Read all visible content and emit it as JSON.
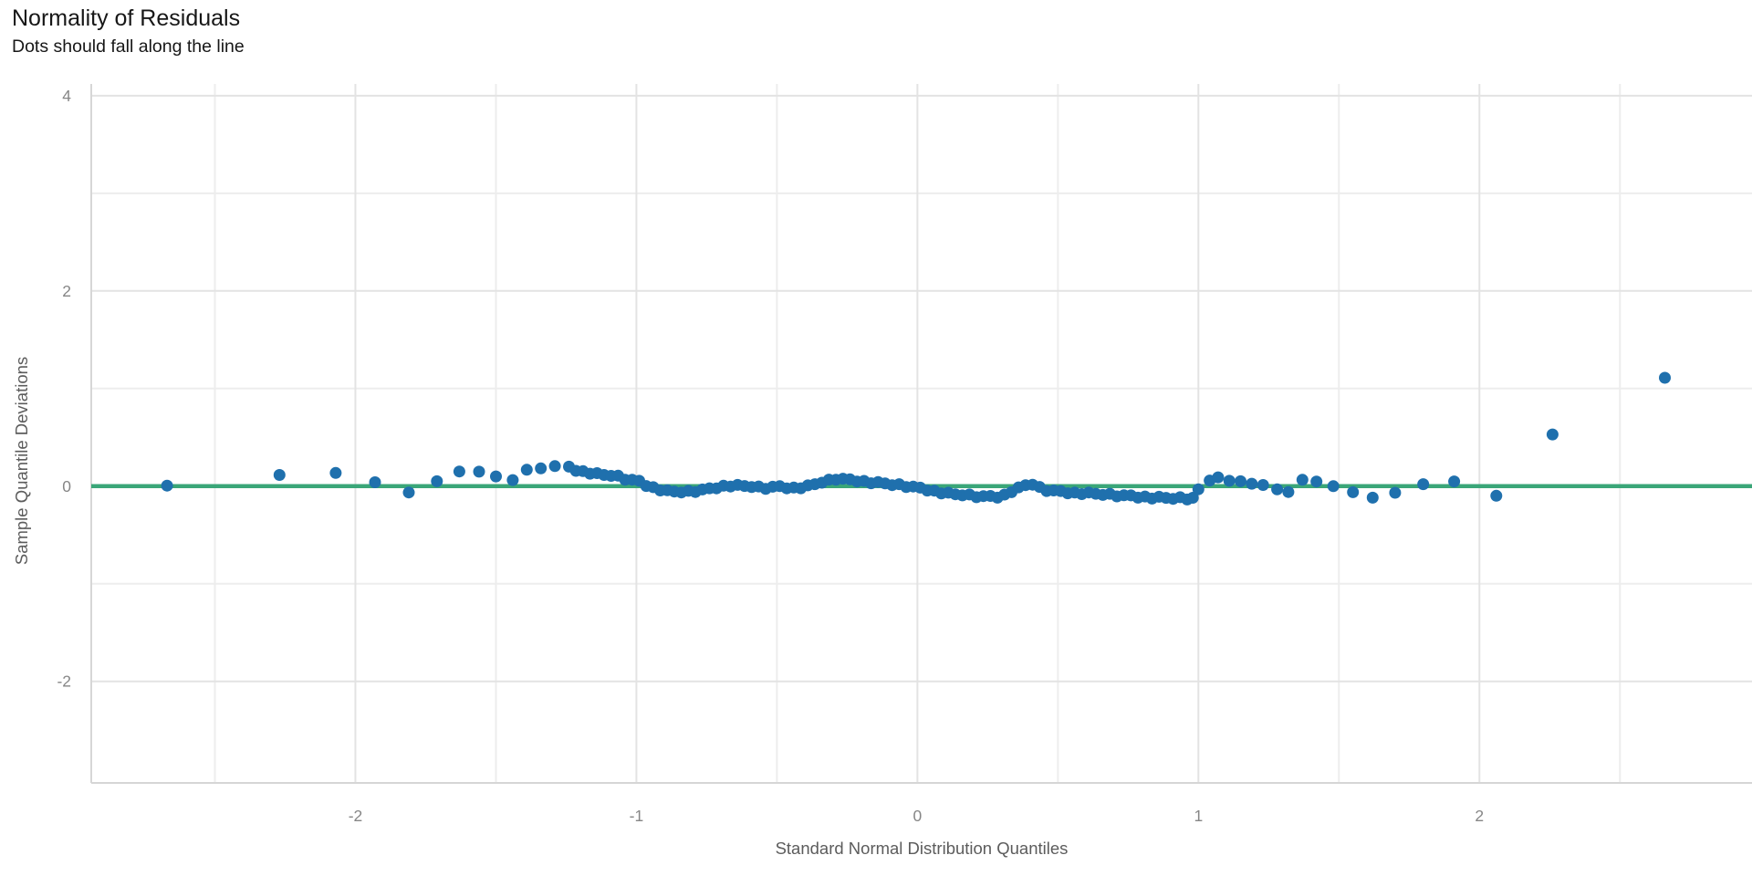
{
  "chart_data": {
    "type": "scatter",
    "title": "Normality of Residuals",
    "subtitle": "Dots should fall along the line",
    "xlabel": "Standard Normal Distribution Quantiles",
    "ylabel": "Sample Quantile Deviations",
    "xlim": [
      -2.94,
      2.97
    ],
    "ylim": [
      -3.04,
      4.12
    ],
    "grid": "on",
    "legend": "none",
    "x_ticks": [
      {
        "v": -2,
        "label": "-2"
      },
      {
        "v": -1,
        "label": "-1"
      },
      {
        "v": 0,
        "label": "0"
      },
      {
        "v": 1,
        "label": "1"
      },
      {
        "v": 2,
        "label": "2"
      }
    ],
    "y_ticks": [
      {
        "v": 4,
        "label": "4"
      },
      {
        "v": 2,
        "label": "2"
      },
      {
        "v": 0,
        "label": "0"
      },
      {
        "v": -2,
        "label": "-2"
      }
    ],
    "x_gridlines_minor": [
      -2.5,
      -1.5,
      -0.5,
      0.5,
      1.5,
      2.5
    ],
    "x_gridlines_major": [
      -2,
      -1,
      0,
      1,
      2
    ],
    "y_gridlines_minor": [
      3,
      1,
      -1
    ],
    "y_gridlines_major": [
      4,
      2,
      0,
      -2
    ],
    "reference_line": {
      "y": 0,
      "meaning": "zero-deviation line"
    },
    "style": {
      "point_color": "#1f70ad",
      "point_radius": 6.5,
      "reference_line_color": "#3aa678",
      "reference_line_width": 4.5,
      "grid_minor_color": "#ededed",
      "grid_major_color": "#e3e3e3",
      "axis_line_color": "#d6d6d6",
      "tick_label_color": "#868686",
      "axis_title_color": "#5c5c5c",
      "title_color": "#171717",
      "background_color": "#ffffff"
    },
    "series": [
      {
        "name": "sample-quantile-deviations",
        "points": [
          [
            -2.67,
            0.005
          ],
          [
            -2.27,
            0.115
          ],
          [
            -2.07,
            0.135
          ],
          [
            -1.93,
            0.04
          ],
          [
            -1.81,
            -0.065
          ],
          [
            -1.71,
            0.05
          ],
          [
            -1.63,
            0.15
          ],
          [
            -1.56,
            0.148
          ],
          [
            -1.5,
            0.1
          ],
          [
            -1.44,
            0.062
          ],
          [
            -1.39,
            0.168
          ],
          [
            -1.34,
            0.182
          ],
          [
            -1.29,
            0.205
          ],
          [
            -1.24,
            0.2
          ],
          [
            -1.215,
            0.157
          ],
          [
            -1.19,
            0.154
          ],
          [
            -1.165,
            0.128
          ],
          [
            -1.14,
            0.133
          ],
          [
            -1.115,
            0.115
          ],
          [
            -1.09,
            0.105
          ],
          [
            -1.065,
            0.107
          ],
          [
            -1.04,
            0.065
          ],
          [
            -1.015,
            0.066
          ],
          [
            -0.99,
            0.055
          ],
          [
            -0.965,
            0.002
          ],
          [
            -0.94,
            -0.011
          ],
          [
            -0.915,
            -0.044
          ],
          [
            -0.89,
            -0.042
          ],
          [
            -0.865,
            -0.055
          ],
          [
            -0.84,
            -0.065
          ],
          [
            -0.815,
            -0.048
          ],
          [
            -0.79,
            -0.06
          ],
          [
            -0.765,
            -0.034
          ],
          [
            -0.74,
            -0.022
          ],
          [
            -0.715,
            -0.023
          ],
          [
            -0.69,
            0.004
          ],
          [
            -0.665,
            -0.004
          ],
          [
            -0.64,
            0.013
          ],
          [
            -0.615,
            0.002
          ],
          [
            -0.59,
            -0.01
          ],
          [
            -0.565,
            -0.003
          ],
          [
            -0.54,
            -0.028
          ],
          [
            -0.515,
            -0.006
          ],
          [
            -0.49,
            0.0
          ],
          [
            -0.465,
            -0.023
          ],
          [
            -0.44,
            -0.014
          ],
          [
            -0.415,
            -0.022
          ],
          [
            -0.39,
            0.008
          ],
          [
            -0.365,
            0.02
          ],
          [
            -0.34,
            0.035
          ],
          [
            -0.315,
            0.067
          ],
          [
            -0.29,
            0.065
          ],
          [
            -0.265,
            0.076
          ],
          [
            -0.24,
            0.07
          ],
          [
            -0.215,
            0.047
          ],
          [
            -0.19,
            0.054
          ],
          [
            -0.165,
            0.03
          ],
          [
            -0.14,
            0.043
          ],
          [
            -0.115,
            0.028
          ],
          [
            -0.09,
            0.01
          ],
          [
            -0.065,
            0.02
          ],
          [
            -0.04,
            -0.01
          ],
          [
            -0.015,
            -0.004
          ],
          [
            0.01,
            -0.015
          ],
          [
            0.035,
            -0.045
          ],
          [
            0.06,
            -0.046
          ],
          [
            0.085,
            -0.075
          ],
          [
            0.11,
            -0.067
          ],
          [
            0.135,
            -0.083
          ],
          [
            0.16,
            -0.095
          ],
          [
            0.185,
            -0.085
          ],
          [
            0.21,
            -0.113
          ],
          [
            0.235,
            -0.102
          ],
          [
            0.26,
            -0.1
          ],
          [
            0.285,
            -0.118
          ],
          [
            0.31,
            -0.086
          ],
          [
            0.335,
            -0.062
          ],
          [
            0.36,
            -0.012
          ],
          [
            0.385,
            0.01
          ],
          [
            0.41,
            0.015
          ],
          [
            0.435,
            -0.008
          ],
          [
            0.46,
            -0.05
          ],
          [
            0.485,
            -0.044
          ],
          [
            0.51,
            -0.05
          ],
          [
            0.535,
            -0.073
          ],
          [
            0.56,
            -0.066
          ],
          [
            0.585,
            -0.082
          ],
          [
            0.61,
            -0.065
          ],
          [
            0.635,
            -0.078
          ],
          [
            0.66,
            -0.09
          ],
          [
            0.685,
            -0.078
          ],
          [
            0.71,
            -0.105
          ],
          [
            0.735,
            -0.094
          ],
          [
            0.76,
            -0.095
          ],
          [
            0.785,
            -0.118
          ],
          [
            0.81,
            -0.106
          ],
          [
            0.835,
            -0.127
          ],
          [
            0.86,
            -0.109
          ],
          [
            0.885,
            -0.12
          ],
          [
            0.91,
            -0.13
          ],
          [
            0.935,
            -0.113
          ],
          [
            0.96,
            -0.137
          ],
          [
            0.98,
            -0.119
          ],
          [
            1.0,
            -0.032
          ],
          [
            1.04,
            0.058
          ],
          [
            1.07,
            0.09
          ],
          [
            1.11,
            0.055
          ],
          [
            1.15,
            0.05
          ],
          [
            1.19,
            0.025
          ],
          [
            1.23,
            0.012
          ],
          [
            1.28,
            -0.033
          ],
          [
            1.32,
            -0.06
          ],
          [
            1.37,
            0.065
          ],
          [
            1.42,
            0.047
          ],
          [
            1.48,
            0.0
          ],
          [
            1.55,
            -0.062
          ],
          [
            1.62,
            -0.118
          ],
          [
            1.7,
            -0.068
          ],
          [
            1.8,
            0.02
          ],
          [
            1.91,
            0.048
          ],
          [
            2.06,
            -0.098
          ],
          [
            2.26,
            0.53
          ],
          [
            2.66,
            1.11
          ]
        ]
      }
    ]
  }
}
